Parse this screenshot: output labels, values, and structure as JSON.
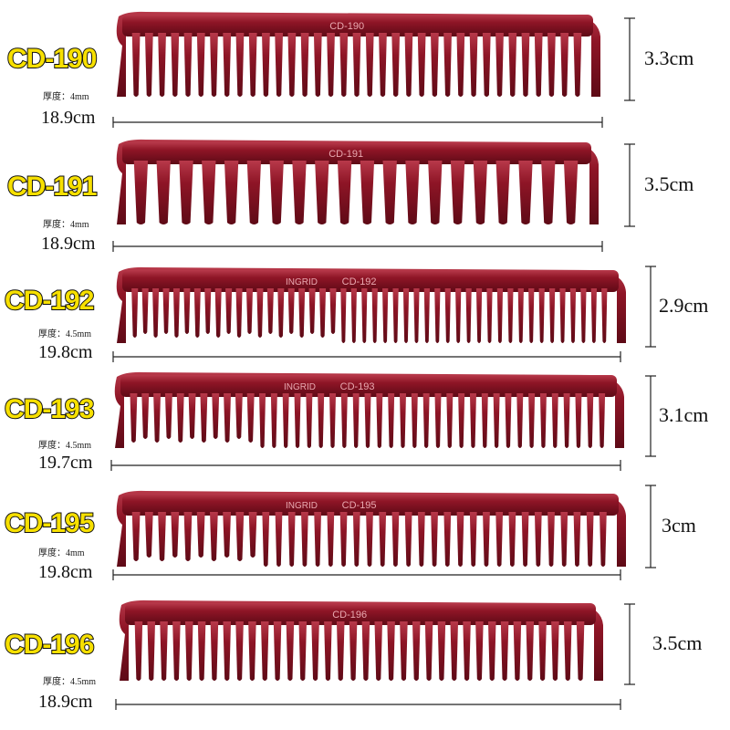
{
  "products": [
    {
      "model": "CD-190",
      "thickness": "厚度：4mm",
      "length": "18.9cm",
      "height": "3.3cm",
      "print": "CD-190",
      "brand": "",
      "teeth": 35,
      "wide": 35
    },
    {
      "model": "CD-191",
      "thickness": "厚度：4mm",
      "length": "18.9cm",
      "height": "3.5cm",
      "print": "CD-191",
      "brand": "",
      "teeth": 20,
      "wide": 20
    },
    {
      "model": "CD-192",
      "thickness": "厚度：4.5mm",
      "length": "19.8cm",
      "height": "2.9cm",
      "print": "CD-192",
      "brand": "INGRID",
      "teeth": 46,
      "wide": 20
    },
    {
      "model": "CD-193",
      "thickness": "厚度：4.5mm",
      "length": "19.7cm",
      "height": "3.1cm",
      "print": "CD-193",
      "brand": "INGRID",
      "teeth": 41,
      "wide": 11
    },
    {
      "model": "CD-195",
      "thickness": "厚度：4mm",
      "length": "19.8cm",
      "height": "3cm",
      "print": "CD-195",
      "brand": "INGRID",
      "teeth": 37,
      "wide": 10
    },
    {
      "model": "CD-196",
      "thickness": "厚度：4.5mm",
      "length": "18.9cm",
      "height": "3.5cm",
      "print": "CD-196",
      "brand": "",
      "teeth": 36,
      "wide": 36
    }
  ],
  "colors": {
    "comb": "#8e1526",
    "comb_dark": "#5e0a16",
    "comb_light": "#b8394a",
    "label_fill": "#f7e000",
    "label_stroke": "#111111"
  }
}
